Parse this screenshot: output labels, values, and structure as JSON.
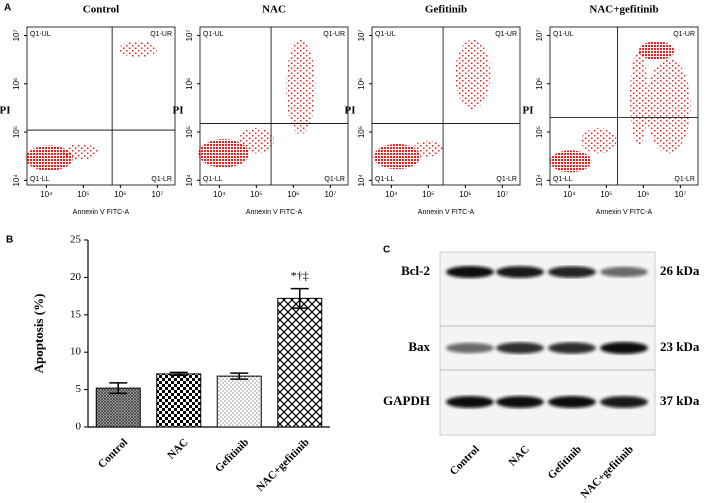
{
  "panel_labels": [
    "A",
    "B",
    "C"
  ],
  "flow": {
    "xlabel": "Annexin V FITC-A",
    "ylabel": "PI",
    "quadrants": [
      "Q1-UL",
      "Q1-UR",
      "Q1-LL",
      "Q1-LR"
    ],
    "log_scale": true,
    "xlim": [
      3000,
      30000000
    ],
    "ylim": [
      8000,
      15000000
    ],
    "xticks": [
      {
        "value": 10000,
        "label": "10⁴"
      },
      {
        "value": 100000,
        "label": "10⁵"
      },
      {
        "value": 1000000,
        "label": "10⁶"
      },
      {
        "value": 10000000,
        "label": "10⁷"
      }
    ],
    "yticks": [
      {
        "value": 10000,
        "label": "10⁴"
      },
      {
        "value": 100000,
        "label": "10⁵"
      },
      {
        "value": 1000000,
        "label": "10⁶"
      },
      {
        "value": 10000000,
        "label": "10⁷"
      }
    ],
    "color": "#ff0000",
    "plots": [
      {
        "title": "Control",
        "gate_x": 600000,
        "gate_y": 110000
      },
      {
        "title": "NAC",
        "gate_x": 250000,
        "gate_y": 150000
      },
      {
        "title": "Gefitinib",
        "gate_x": 250000,
        "gate_y": 150000
      },
      {
        "title": "NAC+gefitinib",
        "gate_x": 200000,
        "gate_y": 200000
      }
    ]
  },
  "chart_data": {
    "type": "bar",
    "ylabel": "Apoptosis (%)",
    "categories": [
      "Control",
      "NAC",
      "Gefitinib",
      "NAC+gefitinib"
    ],
    "values": [
      5.2,
      7.1,
      6.8,
      17.2
    ],
    "errors": [
      0.7,
      0.2,
      0.4,
      1.3
    ],
    "annotation": "*†‡",
    "ylim": [
      0,
      25
    ],
    "yticks": [
      0,
      5,
      10,
      15,
      20,
      25
    ]
  },
  "blot": {
    "rows": [
      {
        "protein": "Bcl-2",
        "size": "26 kDa"
      },
      {
        "protein": "Bax",
        "size": "23 kDa"
      },
      {
        "protein": "GAPDH",
        "size": "37 kDa"
      }
    ],
    "lanes": [
      "Control",
      "NAC",
      "Gefitinib",
      "NAC+gefitinib"
    ]
  }
}
